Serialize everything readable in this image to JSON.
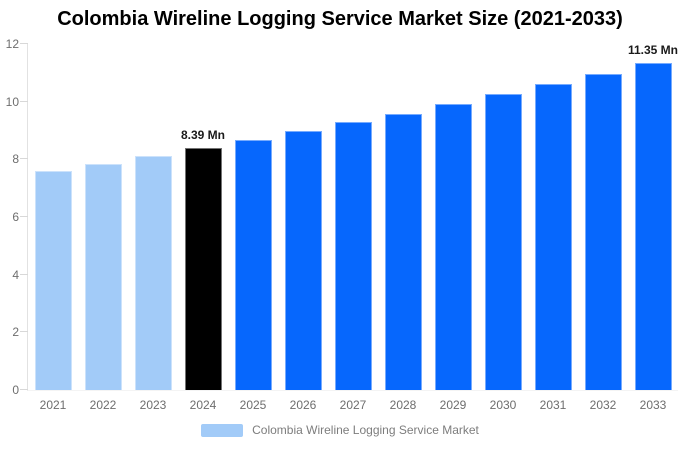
{
  "title": "Colombia Wireline Logging Service Market Size (2021-2033)",
  "legend": {
    "label": "Colombia Wireline Logging Service Market"
  },
  "colors": {
    "historical": "#a2cbf8",
    "current": "#000000",
    "forecast": "#0667fd",
    "axis_line": "#e2e2e2",
    "tick_text": "#6e6e6e",
    "legend_text": "#7d7d7d",
    "annotation_text": "#1a1a1a"
  },
  "chart_data": {
    "type": "bar",
    "title": "Colombia Wireline Logging Service Market Size (2021-2033)",
    "xlabel": "",
    "ylabel": "",
    "unit": "Mn",
    "categories": [
      "2021",
      "2022",
      "2023",
      "2024",
      "2025",
      "2026",
      "2027",
      "2028",
      "2029",
      "2030",
      "2031",
      "2032",
      "2033"
    ],
    "series": [
      {
        "name": "Colombia Wireline Logging Service Market",
        "values": [
          7.59,
          7.85,
          8.11,
          8.39,
          8.68,
          8.97,
          9.28,
          9.59,
          9.92,
          10.26,
          10.61,
          10.97,
          11.35
        ]
      }
    ],
    "bar_roles": [
      "historical",
      "historical",
      "historical",
      "current",
      "forecast",
      "forecast",
      "forecast",
      "forecast",
      "forecast",
      "forecast",
      "forecast",
      "forecast",
      "forecast"
    ],
    "annotations": [
      {
        "category": "2024",
        "text": "8.39 Mn"
      },
      {
        "category": "2033",
        "text": "11.35 Mn"
      }
    ],
    "ylim": [
      0,
      12
    ],
    "yticks": [
      0,
      2,
      4,
      6,
      8,
      10,
      12
    ],
    "grid": false,
    "legend_position": "bottom"
  }
}
